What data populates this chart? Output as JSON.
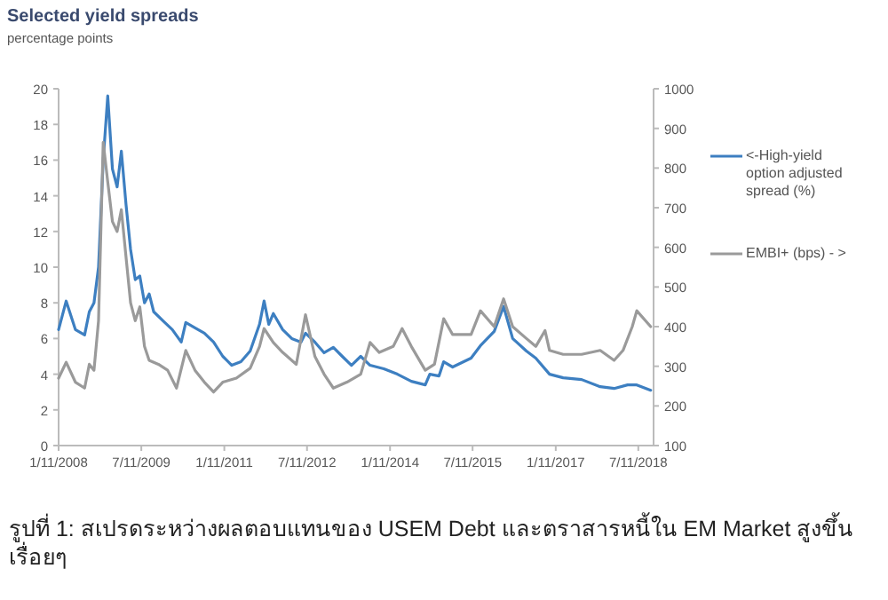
{
  "chart_data": {
    "type": "line",
    "title": "Selected yield spreads",
    "subtitle": "percentage points",
    "annotations": [
      "รูปที่ 1: สเปรดระหว่างผลตอบแทนของ USEM Debt และตราสารหนี้ใน EM Market สูงขึ้นเรื่อยๆ"
    ],
    "xlim": [
      "2008-01-11",
      "2018-10-20"
    ],
    "xticks": [
      {
        "value": "2008-01-11",
        "label": "1/11/2008"
      },
      {
        "value": "2009-07-11",
        "label": "7/11/2009"
      },
      {
        "value": "2011-01-11",
        "label": "1/11/2011"
      },
      {
        "value": "2012-07-11",
        "label": "7/11/2012"
      },
      {
        "value": "2014-01-11",
        "label": "1/11/2014"
      },
      {
        "value": "2015-07-11",
        "label": "7/11/2015"
      },
      {
        "value": "2017-01-11",
        "label": "1/11/2017"
      },
      {
        "value": "2018-07-11",
        "label": "7/11/2018"
      }
    ],
    "ylim": [
      0,
      20
    ],
    "yticks": [
      0,
      2,
      4,
      6,
      8,
      10,
      12,
      14,
      16,
      18,
      20
    ],
    "y2lim": [
      100,
      1000
    ],
    "y2ticks": [
      100,
      200,
      300,
      400,
      500,
      600,
      700,
      800,
      900,
      1000
    ],
    "grid": false,
    "legend": "right",
    "marker": "none",
    "line_style": "solid",
    "series": [
      {
        "name": "<-High-yield option adjusted spread (%)",
        "color": "#3d7fc1",
        "x": [
          "2008-01-11",
          "2008-03",
          "2008-05",
          "2008-07",
          "2008-08",
          "2008-09",
          "2008-10",
          "2008-11",
          "2008-12",
          "2009-01",
          "2009-02",
          "2009-03",
          "2009-04",
          "2009-05",
          "2009-06",
          "2009-07",
          "2009-08",
          "2009-09",
          "2009-10",
          "2009-12",
          "2010-02",
          "2010-04",
          "2010-05",
          "2010-07",
          "2010-09",
          "2010-11",
          "2011-01",
          "2011-03",
          "2011-05",
          "2011-07",
          "2011-09",
          "2011-10",
          "2011-11",
          "2011-12",
          "2012-02",
          "2012-04",
          "2012-06",
          "2012-07",
          "2012-09",
          "2012-11",
          "2013-01",
          "2013-03",
          "2013-05",
          "2013-07",
          "2013-09",
          "2013-12",
          "2014-03",
          "2014-06",
          "2014-09",
          "2014-10",
          "2014-12",
          "2015-01",
          "2015-03",
          "2015-07",
          "2015-09",
          "2015-12",
          "2016-02",
          "2016-04",
          "2016-07",
          "2016-09",
          "2016-12",
          "2017-03",
          "2017-07",
          "2017-11",
          "2018-02",
          "2018-05",
          "2018-07",
          "2018-10"
        ],
        "values": [
          6.5,
          8.1,
          6.5,
          6.2,
          7.5,
          8.0,
          10,
          16,
          19.6,
          15.5,
          14.5,
          16.5,
          13.5,
          11,
          9.3,
          9.5,
          8.0,
          8.5,
          7.5,
          7.0,
          6.5,
          5.8,
          6.9,
          6.6,
          6.3,
          5.8,
          5.0,
          4.5,
          4.7,
          5.3,
          6.8,
          8.1,
          6.8,
          7.4,
          6.5,
          6.0,
          5.8,
          6.3,
          5.8,
          5.2,
          5.5,
          5.0,
          4.5,
          5.0,
          4.5,
          4.3,
          4.0,
          3.6,
          3.4,
          4.0,
          3.9,
          4.7,
          4.4,
          4.9,
          5.6,
          6.4,
          7.8,
          6.0,
          5.3,
          4.9,
          4.0,
          3.8,
          3.7,
          3.3,
          3.2,
          3.4,
          3.4,
          3.1
        ]
      },
      {
        "name": "EMBI+ (bps) - >",
        "color": "#9a9a9a",
        "axis": "y2",
        "x": [
          "2008-01-11",
          "2008-03",
          "2008-05",
          "2008-07",
          "2008-08",
          "2008-09",
          "2008-10",
          "2008-11",
          "2008-12",
          "2009-01",
          "2009-02",
          "2009-03",
          "2009-04",
          "2009-05",
          "2009-06",
          "2009-07",
          "2009-08",
          "2009-09",
          "2009-11",
          "2010-01",
          "2010-03",
          "2010-05",
          "2010-07",
          "2010-09",
          "2010-11",
          "2011-01",
          "2011-04",
          "2011-07",
          "2011-09",
          "2011-10",
          "2011-12",
          "2012-02",
          "2012-05",
          "2012-07",
          "2012-09",
          "2012-11",
          "2013-01",
          "2013-04",
          "2013-07",
          "2013-09",
          "2013-11",
          "2014-02",
          "2014-04",
          "2014-06",
          "2014-09",
          "2014-11",
          "2015-01",
          "2015-03",
          "2015-07",
          "2015-09",
          "2015-12",
          "2016-02",
          "2016-04",
          "2016-07",
          "2016-09",
          "2016-11",
          "2016-12",
          "2017-03",
          "2017-07",
          "2017-11",
          "2018-02",
          "2018-04",
          "2018-06",
          "2018-07",
          "2018-10"
        ],
        "values": [
          270,
          310,
          260,
          245,
          305,
          290,
          415,
          865,
          765,
          665,
          640,
          695,
          575,
          460,
          415,
          450,
          350,
          315,
          305,
          290,
          245,
          340,
          290,
          260,
          235,
          260,
          270,
          295,
          350,
          395,
          360,
          335,
          305,
          430,
          325,
          280,
          245,
          260,
          280,
          360,
          335,
          350,
          395,
          350,
          290,
          305,
          420,
          380,
          380,
          440,
          400,
          470,
          400,
          370,
          350,
          390,
          340,
          330,
          330,
          340,
          315,
          340,
          400,
          440,
          400
        ]
      }
    ]
  }
}
